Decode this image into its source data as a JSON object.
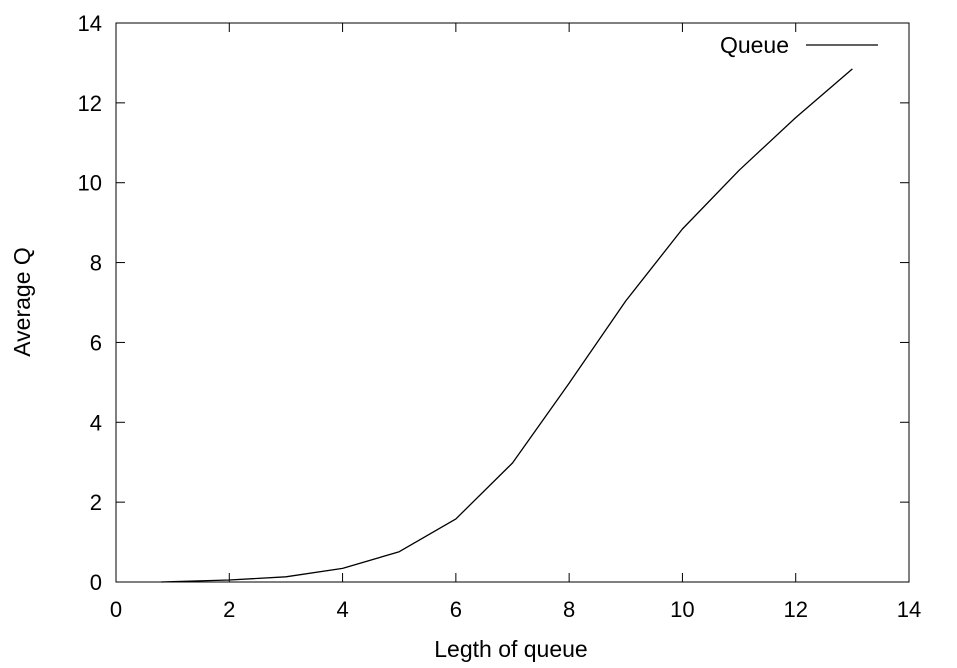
{
  "chart_data": {
    "type": "line",
    "title": "",
    "xlabel": "Legth of queue",
    "ylabel": "Average Q",
    "xlim": [
      0,
      14
    ],
    "ylim": [
      0,
      14
    ],
    "xticks": [
      "0",
      "2",
      "4",
      "6",
      "8",
      "10",
      "12",
      "14"
    ],
    "yticks": [
      "0",
      "2",
      "4",
      "6",
      "8",
      "10",
      "12",
      "14"
    ],
    "grid": false,
    "legend_position": "top-right",
    "series": [
      {
        "name": "Queue",
        "color": "#000000",
        "x": [
          0.8,
          1,
          2,
          3,
          4,
          5,
          6,
          7,
          8,
          9,
          10,
          11,
          12,
          13
        ],
        "y": [
          0.0,
          0.01,
          0.05,
          0.13,
          0.34,
          0.76,
          1.58,
          2.98,
          4.98,
          7.04,
          8.84,
          10.31,
          11.63,
          12.85
        ]
      }
    ]
  }
}
